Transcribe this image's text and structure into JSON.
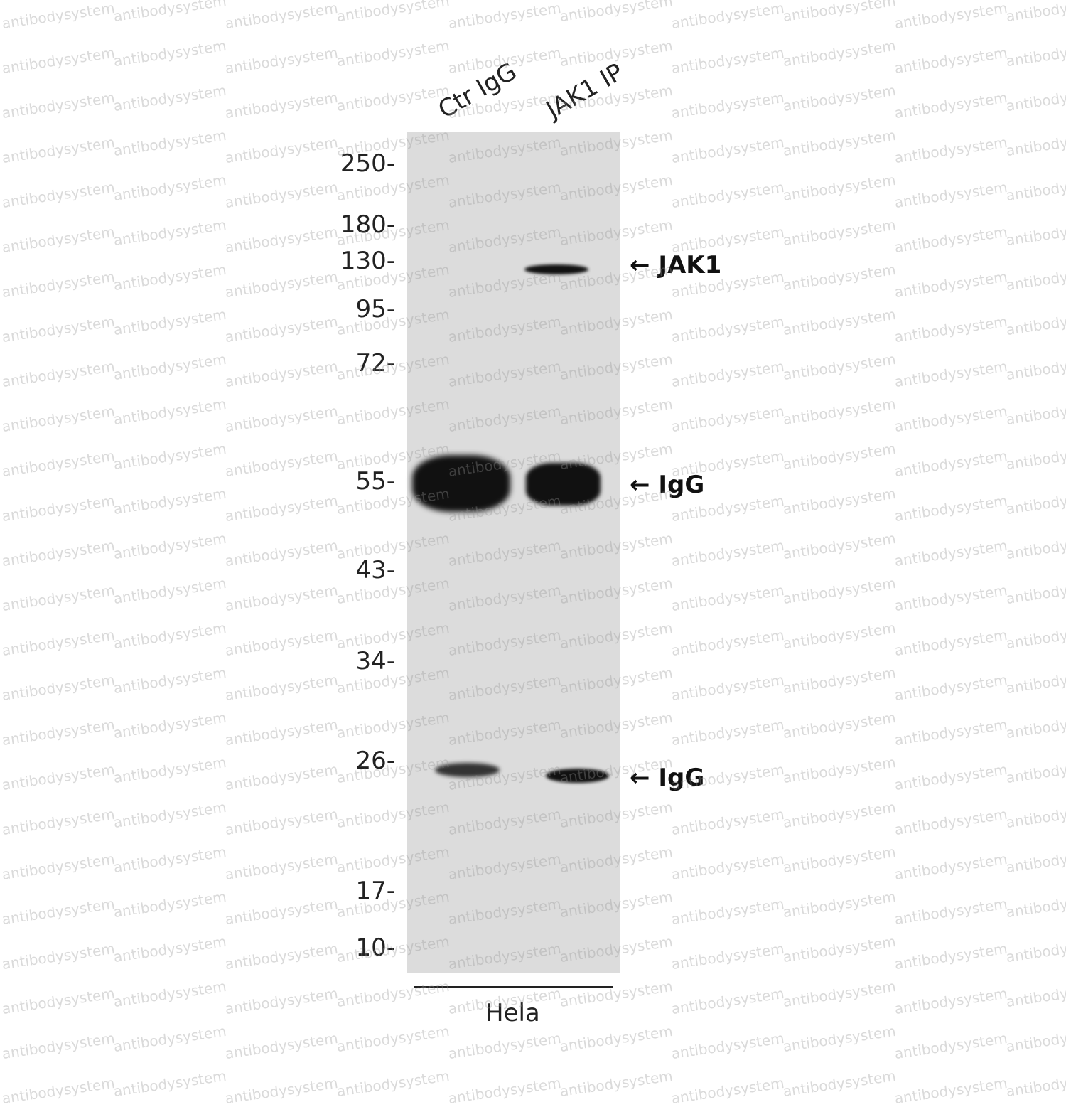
{
  "lanes": [
    "Ctr IgG",
    "JAK1 IP"
  ],
  "markers": [
    "250-",
    "180-",
    "130-",
    "95-",
    "72-",
    "55-",
    "43-",
    "34-",
    "26-",
    "17-",
    "10-"
  ],
  "annotations": [
    "← JAK1",
    "← IgG",
    "← IgG"
  ],
  "sample": "Hela",
  "watermark": "antibodysystem"
}
